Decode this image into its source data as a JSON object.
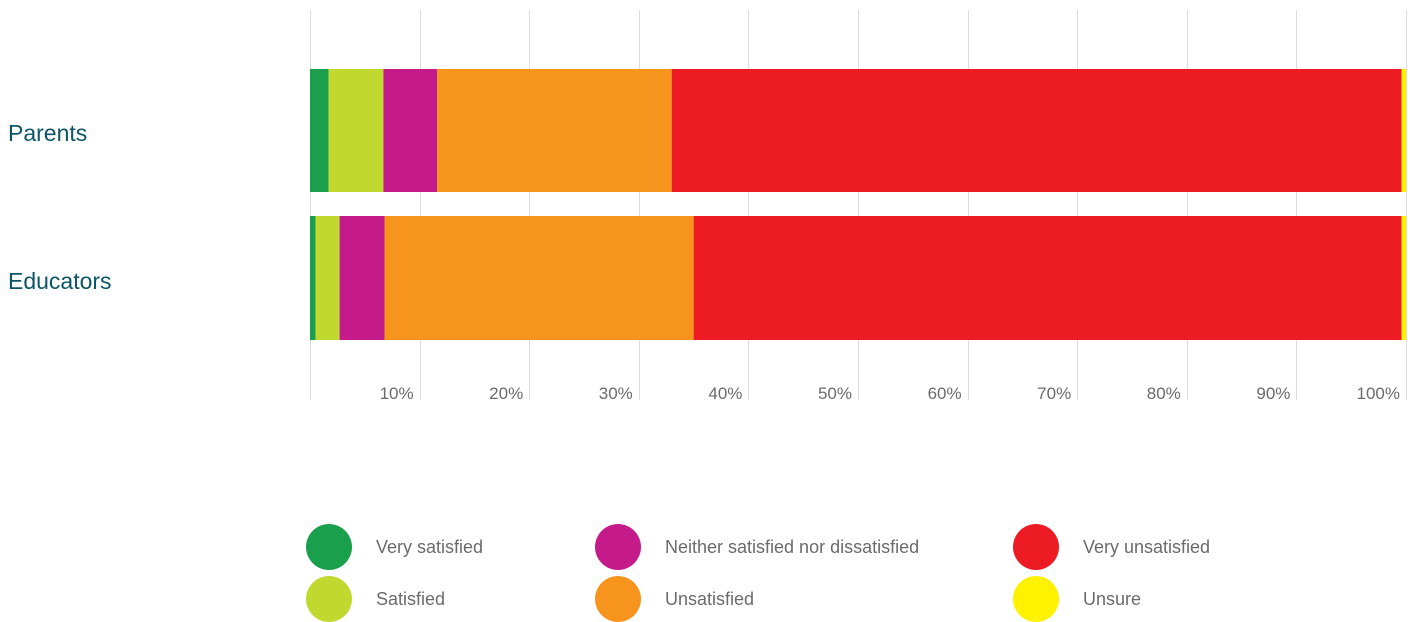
{
  "chart_data": {
    "type": "bar",
    "orientation": "horizontal",
    "stacked": true,
    "categories": [
      "Parents",
      "Educators"
    ],
    "series": [
      {
        "name": "Very satisfied",
        "color": "#1aa04c",
        "values": [
          1.7,
          0.5
        ]
      },
      {
        "name": "Satisfied",
        "color": "#c1d82f",
        "values": [
          5.0,
          2.2
        ]
      },
      {
        "name": "Neither satisfied nor dissatisfied",
        "color": "#c51a8a",
        "values": [
          4.9,
          4.1
        ]
      },
      {
        "name": "Unsatisfied",
        "color": "#f7941d",
        "values": [
          21.4,
          28.2
        ]
      },
      {
        "name": "Very unsatisfied",
        "color": "#ed1c24",
        "values": [
          66.6,
          64.6
        ]
      },
      {
        "name": "Unsure",
        "color": "#fff200",
        "values": [
          0.4,
          0.4
        ]
      }
    ],
    "xlim": [
      0,
      100
    ],
    "xticks": [
      "10%",
      "20%",
      "30%",
      "40%",
      "50%",
      "60%",
      "70%",
      "80%",
      "90%",
      "100%"
    ],
    "grid": true,
    "legend_position": "bottom",
    "title": "",
    "xlabel": "",
    "ylabel": ""
  }
}
